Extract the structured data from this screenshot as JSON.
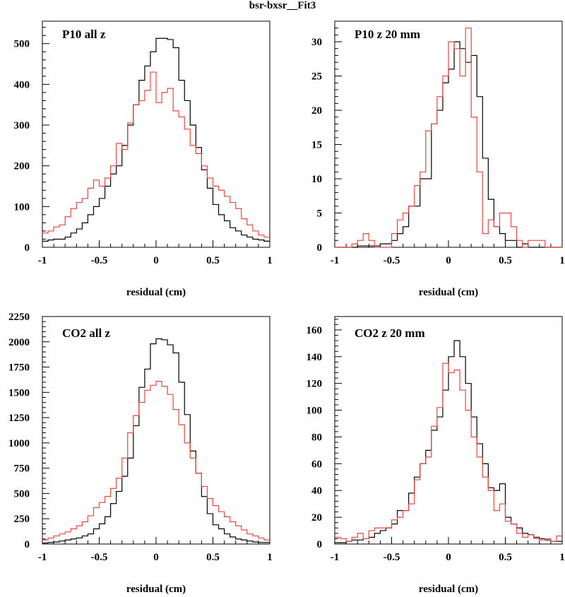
{
  "figure_title": "bsr-bxsr__Fit3",
  "colors": {
    "black_series": "#000000",
    "red_series": "#e8473f",
    "frame": "#000000"
  },
  "chart_data": [
    {
      "type": "histogram",
      "label": "P10 all z",
      "xlabel": "residual (cm)",
      "xlim": [
        -1,
        1
      ],
      "ylim": [
        0,
        555
      ],
      "x_ticks": [
        -1,
        -0.5,
        0,
        0.5,
        1
      ],
      "x_tick_labels": [
        "-1",
        "-0.5",
        "0",
        "0.5",
        "1"
      ],
      "y_ticks": [
        0,
        100,
        200,
        300,
        400,
        500
      ],
      "y_tick_labels": [
        "0",
        "100",
        "200",
        "300",
        "400",
        "500"
      ],
      "bin_edges": [
        -1,
        0.05
      ],
      "series": [
        {
          "color": "#000000",
          "values": [
            15,
            18,
            20,
            20,
            25,
            35,
            45,
            60,
            80,
            100,
            120,
            150,
            180,
            200,
            250,
            300,
            350,
            410,
            445,
            480,
            513,
            513,
            510,
            490,
            410,
            360,
            300,
            245,
            190,
            145,
            105,
            80,
            65,
            48,
            40,
            30,
            25,
            20,
            18,
            15
          ]
        },
        {
          "color": "#e8473f",
          "values": [
            35,
            40,
            50,
            55,
            75,
            95,
            110,
            120,
            145,
            165,
            150,
            170,
            200,
            255,
            240,
            305,
            350,
            360,
            385,
            430,
            355,
            380,
            390,
            335,
            320,
            290,
            250,
            230,
            200,
            170,
            150,
            140,
            125,
            110,
            95,
            70,
            55,
            40,
            30,
            25
          ]
        }
      ]
    },
    {
      "type": "histogram",
      "label": "P10 z  20 mm",
      "xlabel": "residual (cm)",
      "xlim": [
        -1,
        1
      ],
      "ylim": [
        0,
        33
      ],
      "x_ticks": [
        -1,
        -0.5,
        0,
        0.5,
        1
      ],
      "x_tick_labels": [
        "-1",
        "-0.5",
        "0",
        "0.5",
        "1"
      ],
      "y_ticks": [
        0,
        5,
        10,
        15,
        20,
        25,
        30
      ],
      "y_tick_labels": [
        "0",
        "5",
        "10",
        "15",
        "20",
        "25",
        "30"
      ],
      "bin_edges": [
        -1,
        0.05
      ],
      "series": [
        {
          "color": "#000000",
          "values": [
            0,
            0,
            0,
            0,
            0.2,
            0.2,
            0.2,
            0.2,
            0.5,
            0.5,
            1,
            2,
            3,
            6,
            6,
            10,
            10,
            18,
            20,
            24,
            26,
            30,
            29,
            27,
            28,
            22,
            13,
            7,
            3,
            2,
            1,
            1,
            0,
            0.5,
            0,
            0,
            0,
            0,
            0,
            0
          ]
        },
        {
          "color": "#e8473f",
          "values": [
            0,
            0,
            0,
            0.5,
            1,
            2,
            1,
            0,
            0,
            0,
            2,
            4,
            5,
            6,
            9,
            11,
            17,
            18,
            22,
            25,
            30,
            29,
            25,
            32,
            19,
            11,
            2,
            4,
            3,
            5,
            5,
            3,
            1,
            0,
            1,
            1,
            1,
            0,
            0,
            0
          ]
        }
      ]
    },
    {
      "type": "histogram",
      "label": "CO2 all z",
      "xlabel": "residual (cm)",
      "xlim": [
        -1,
        1
      ],
      "ylim": [
        0,
        2250
      ],
      "x_ticks": [
        -1,
        -0.5,
        0,
        0.5,
        1
      ],
      "x_tick_labels": [
        "-1",
        "-0.5",
        "0",
        "0.5",
        "1"
      ],
      "y_ticks": [
        0,
        250,
        500,
        750,
        1000,
        1250,
        1500,
        1750,
        2000,
        2250
      ],
      "y_tick_labels": [
        "0",
        "250",
        "500",
        "750",
        "1000",
        "1250",
        "1500",
        "1750",
        "2000",
        "2250"
      ],
      "bin_edges": [
        -1,
        0.05
      ],
      "series": [
        {
          "color": "#000000",
          "values": [
            10,
            15,
            20,
            30,
            40,
            50,
            60,
            80,
            100,
            150,
            200,
            270,
            400,
            520,
            670,
            850,
            1170,
            1550,
            1730,
            1980,
            2030,
            2020,
            1970,
            1890,
            1600,
            1280,
            920,
            700,
            470,
            300,
            190,
            150,
            100,
            70,
            50,
            40,
            30,
            20,
            15,
            15
          ]
        },
        {
          "color": "#e8473f",
          "values": [
            40,
            60,
            80,
            100,
            120,
            150,
            180,
            220,
            280,
            360,
            410,
            470,
            550,
            650,
            850,
            1100,
            1270,
            1400,
            1520,
            1570,
            1610,
            1560,
            1480,
            1330,
            1180,
            1000,
            850,
            700,
            570,
            450,
            380,
            320,
            270,
            220,
            180,
            140,
            100,
            80,
            60,
            40
          ]
        }
      ]
    },
    {
      "type": "histogram",
      "label": "CO2 z  20 mm",
      "xlabel": "residual (cm)",
      "xlim": [
        -1,
        1
      ],
      "ylim": [
        0,
        170
      ],
      "x_ticks": [
        -1,
        -0.5,
        0,
        0.5,
        1
      ],
      "x_tick_labels": [
        "-1",
        "-0.5",
        "0",
        "0.5",
        "1"
      ],
      "y_ticks": [
        0,
        20,
        40,
        60,
        80,
        100,
        120,
        140,
        160
      ],
      "y_tick_labels": [
        "0",
        "20",
        "40",
        "60",
        "80",
        "100",
        "120",
        "140",
        "160"
      ],
      "bin_edges": [
        -1,
        0.05
      ],
      "series": [
        {
          "color": "#000000",
          "values": [
            1,
            1,
            2,
            3,
            3,
            4,
            5,
            8,
            10,
            12,
            15,
            25,
            25,
            38,
            50,
            60,
            70,
            85,
            95,
            115,
            140,
            152,
            140,
            120,
            95,
            75,
            60,
            42,
            40,
            45,
            20,
            15,
            12,
            8,
            7,
            5,
            4,
            3,
            2,
            2
          ]
        },
        {
          "color": "#e8473f",
          "values": [
            5,
            4,
            2,
            5,
            8,
            4,
            10,
            12,
            12,
            12,
            18,
            20,
            25,
            30,
            48,
            60,
            65,
            88,
            102,
            135,
            128,
            130,
            115,
            100,
            80,
            65,
            50,
            40,
            25,
            30,
            17,
            15,
            8,
            5,
            7,
            4,
            3,
            4,
            2,
            6
          ]
        }
      ]
    }
  ]
}
